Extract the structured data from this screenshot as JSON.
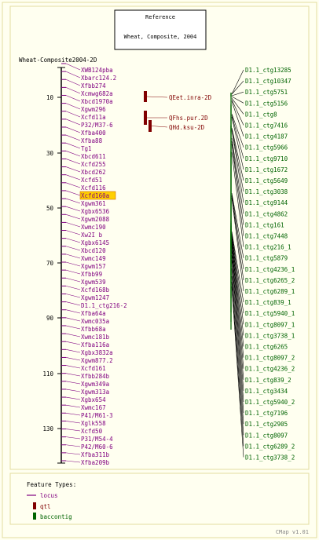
{
  "reference": {
    "heading": "Reference",
    "title": "Wheat, Composite, 2004"
  },
  "map_title": "Wheat-Composite2004-2D",
  "axis_ticks": [
    "10",
    "30",
    "50",
    "70",
    "90",
    "110",
    "130"
  ],
  "markers": [
    "XWB124pba",
    "Xbarc124.2",
    "Xfbb274",
    "Xcmwg682a",
    "Xbcd1970a",
    "Xgwm296",
    "Xcfd11a",
    "P32/M37-6",
    "Xfba400",
    "Xfba88",
    "Tg1",
    "Xbcd611",
    "Xcfd255",
    "Xbcd262",
    "Xcfd51",
    "Xcfd116",
    "Xcfd160a",
    "Xgwm361",
    "Xgbx6536",
    "Xgwm2088",
    "Xwmc190",
    "Xw2I b",
    "Xgbx6145",
    "Xbcd120",
    "Xwmc149",
    "Xgwm157",
    "Xfbb99",
    "Xgwm539",
    "Xcfd168b",
    "Xgwm1247",
    "D1.1_ctg216-2",
    "Xfba64a",
    "Xwmc035a",
    "Xfbb68a",
    "Xwmc181b",
    "Xfba116a",
    "Xgbx3832a",
    "Xgwm877.2",
    "Xcfd161",
    "Xfbb284b",
    "Xgwm349a",
    "Xgwm313a",
    "Xgbx654",
    "Xwmc167",
    "P41/M61-3",
    "Xglk558",
    "Xcfd50",
    "P31/M54-4",
    "P42/M60-6",
    "Xfba311b",
    "Xfba209b"
  ],
  "highlighted_marker": "Xcfd160a",
  "qtls": [
    "QEet.inra-2D",
    "QFhs.pur.2D",
    "QHd.ksu-2D"
  ],
  "contigs": [
    "D1.1_ctg13285",
    "D1.1_ctg10347",
    "D1.1_ctg5751",
    "D1.1_ctg5156",
    "D1.1_ctg8",
    "D1.1_ctg7416",
    "D1.1_ctg4187",
    "D1.1_ctg5966",
    "D1.1_ctg9710",
    "D1.1_ctg1672",
    "D1.1_ctg5649",
    "D1.1_ctg3038",
    "D1.1_ctg9144",
    "D1.1_ctg4862",
    "D1.1_ctg161",
    "D1.1_ctg7448",
    "D1.1_ctg216_1",
    "D1.1_ctg5879",
    "D1.1_ctg4236_1",
    "D1.1_ctg6265_2",
    "D1.1_ctg6289_1",
    "D1.1_ctg839_1",
    "D1.1_ctg5940_1",
    "D1.1_ctg8097_1",
    "D1.1_ctg3738_1",
    "D1.1_ctg6265",
    "D1.1_ctg8097_2",
    "D1.1_ctg4236_2",
    "D1.1_ctg839_2",
    "D1.1_ctg3434",
    "D1.1_ctg5940_2",
    "D1.1_ctg7196",
    "D1.1_ctg2905",
    "D1.1_ctg8097",
    "D1.1_ctg6289_2",
    "D1.1_ctg3738_2"
  ],
  "legend": {
    "title": "Feature Types:",
    "items": [
      "locus",
      "qtl",
      "baccontig"
    ]
  },
  "credit": "CMap v1.01",
  "colors": {
    "locus": "#800080",
    "qtl": "#800000",
    "contig": "#006400",
    "highlight": "#ffd000",
    "border": "#d8c878"
  }
}
